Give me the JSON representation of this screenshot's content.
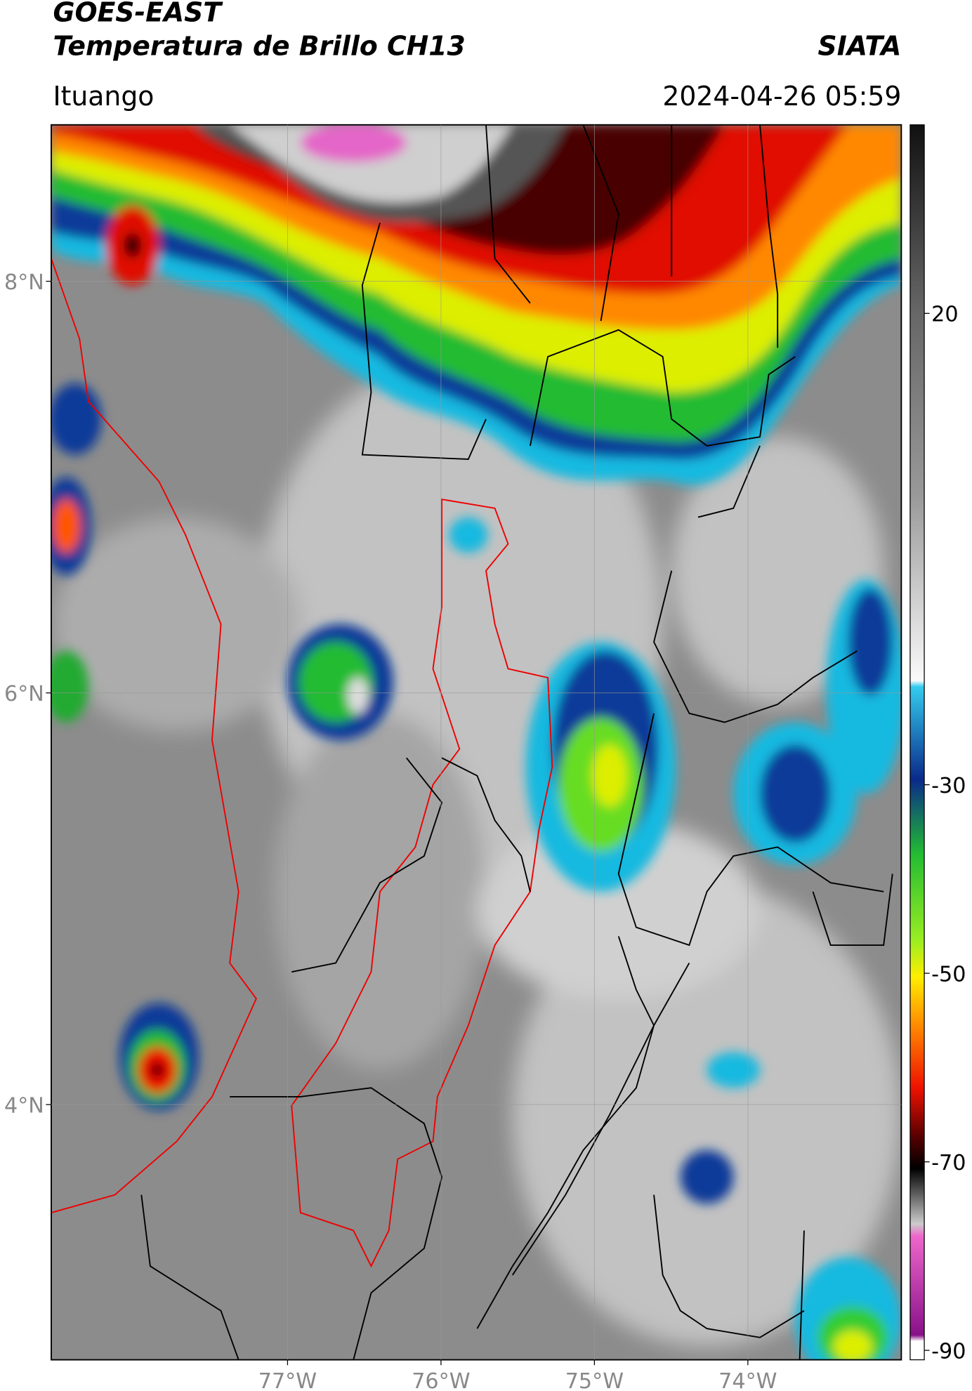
{
  "header": {
    "title_line1": "GOES-EAST",
    "title_line2": "Temperatura de Brillo CH13",
    "organization": "SIATA",
    "location": "Ituango",
    "datetime": "2024-04-26 05:59"
  },
  "map": {
    "lat_lim": [
      2.76,
      8.76
    ],
    "lon_lim": [
      -78.54,
      -73.0
    ],
    "lat_ticks": [
      {
        "value": 8,
        "label": "8°N"
      },
      {
        "value": 6,
        "label": "6°N"
      },
      {
        "value": 4,
        "label": "4°N"
      }
    ],
    "lon_ticks": [
      {
        "value": -77,
        "label": "77°W"
      },
      {
        "value": -76,
        "label": "76°W"
      },
      {
        "value": -75,
        "label": "75°W"
      },
      {
        "value": -74,
        "label": "74°W"
      }
    ]
  },
  "colorbar": {
    "lim": [
      -91,
      40
    ],
    "ticks": [
      20,
      -30,
      -50,
      -70,
      -90
    ]
  }
}
